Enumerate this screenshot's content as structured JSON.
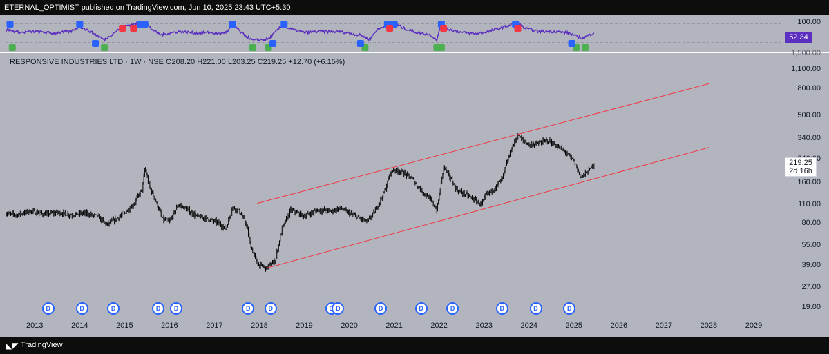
{
  "header": {
    "text": "ETERNAL_OPTIMIST published on TradingView.com, Jun 10, 2025 23:43 UTC+5:30"
  },
  "legend": {
    "text": "RESPONSIVE INDUSTRIES LTD · 1W · NSE  O208.20  H221.00  L203.25  C219.25  +12.70 (+6.15%)"
  },
  "price_tag": {
    "price": "219.25",
    "countdown": "2d 16h"
  },
  "rsi_tag": {
    "value": "52.34"
  },
  "oscillator_labels": [
    "100.00",
    "1,500.00"
  ],
  "footer": {
    "brand": "TradingView",
    "logo_icon": "tradingview-logo-icon"
  },
  "colors": {
    "background": "#b2b5be",
    "candles": "#000000",
    "channel": "#f23645",
    "rsi": "#5b2fbf",
    "bull_marker": "#4caf50",
    "bear_marker": "#2962ff",
    "sell_marker": "#f23645"
  },
  "chart_data": {
    "type": "bar",
    "title": "",
    "symbol": "RESPONSIVE INDUSTRIES LTD",
    "interval": "1W",
    "exchange": "NSE",
    "ohlc": {
      "open": 208.2,
      "high": 221.0,
      "low": 203.25,
      "close": 219.25,
      "change": 12.7,
      "change_pct": 6.15
    },
    "y_scale": "log",
    "ylim": [
      16,
      1400
    ],
    "yticks": [
      1100,
      800,
      500,
      340,
      240,
      160,
      110,
      80,
      55,
      39,
      27,
      19
    ],
    "ytick_labels": [
      "1,100.00",
      "800.00",
      "500.00",
      "340.00",
      "240.00",
      "160.00",
      "110.00",
      "80.00",
      "55.00",
      "39.00",
      "27.00",
      "19.00"
    ],
    "xlim": [
      2012.35,
      2029.6
    ],
    "xticks": [
      2013,
      2014,
      2015,
      2016,
      2017,
      2018,
      2019,
      2020,
      2021,
      2022,
      2023,
      2024,
      2025,
      2026,
      2027,
      2028,
      2029
    ],
    "xtick_labels": [
      "2013",
      "2014",
      "2015",
      "2016",
      "2017",
      "2018",
      "2019",
      "2020",
      "2021",
      "2022",
      "2023",
      "2024",
      "2025",
      "2026",
      "2027",
      "2028",
      "2029"
    ],
    "price_path": [
      [
        2012.35,
        95
      ],
      [
        2012.6,
        92
      ],
      [
        2012.9,
        98
      ],
      [
        2013.2,
        93
      ],
      [
        2013.5,
        96
      ],
      [
        2013.8,
        92
      ],
      [
        2014.1,
        95
      ],
      [
        2014.4,
        90
      ],
      [
        2014.6,
        78
      ],
      [
        2014.8,
        85
      ],
      [
        2015.0,
        95
      ],
      [
        2015.2,
        110
      ],
      [
        2015.4,
        145
      ],
      [
        2015.45,
        205
      ],
      [
        2015.55,
        150
      ],
      [
        2015.7,
        115
      ],
      [
        2015.85,
        85
      ],
      [
        2016.0,
        82
      ],
      [
        2016.2,
        110
      ],
      [
        2016.4,
        100
      ],
      [
        2016.6,
        90
      ],
      [
        2016.9,
        85
      ],
      [
        2017.1,
        80
      ],
      [
        2017.25,
        72
      ],
      [
        2017.4,
        105
      ],
      [
        2017.55,
        98
      ],
      [
        2017.7,
        80
      ],
      [
        2017.8,
        55
      ],
      [
        2017.95,
        40
      ],
      [
        2018.15,
        37
      ],
      [
        2018.35,
        42
      ],
      [
        2018.5,
        72
      ],
      [
        2018.7,
        100
      ],
      [
        2019.0,
        90
      ],
      [
        2019.3,
        100
      ],
      [
        2019.6,
        98
      ],
      [
        2019.8,
        103
      ],
      [
        2020.0,
        95
      ],
      [
        2020.2,
        88
      ],
      [
        2020.4,
        82
      ],
      [
        2020.55,
        95
      ],
      [
        2020.8,
        140
      ],
      [
        2020.9,
        185
      ],
      [
        2021.0,
        200
      ],
      [
        2021.2,
        190
      ],
      [
        2021.4,
        170
      ],
      [
        2021.6,
        140
      ],
      [
        2021.8,
        120
      ],
      [
        2021.95,
        100
      ],
      [
        2022.1,
        210
      ],
      [
        2022.2,
        185
      ],
      [
        2022.4,
        140
      ],
      [
        2022.6,
        130
      ],
      [
        2022.8,
        118
      ],
      [
        2022.95,
        110
      ],
      [
        2023.05,
        130
      ],
      [
        2023.2,
        140
      ],
      [
        2023.4,
        170
      ],
      [
        2023.6,
        280
      ],
      [
        2023.75,
        360
      ],
      [
        2023.85,
        330
      ],
      [
        2024.0,
        305
      ],
      [
        2024.2,
        310
      ],
      [
        2024.4,
        330
      ],
      [
        2024.6,
        300
      ],
      [
        2024.8,
        270
      ],
      [
        2025.0,
        230
      ],
      [
        2025.15,
        175
      ],
      [
        2025.25,
        185
      ],
      [
        2025.35,
        200
      ],
      [
        2025.45,
        219.25
      ]
    ],
    "channel_upper": [
      [
        2017.95,
        112
      ],
      [
        2028.0,
        860
      ]
    ],
    "channel_lower": [
      [
        2018.15,
        37
      ],
      [
        2028.0,
        290
      ]
    ],
    "rsi": {
      "value": 52.34,
      "path": [
        [
          2012.35,
          60
        ],
        [
          2012.7,
          52
        ],
        [
          2013.0,
          55
        ],
        [
          2013.4,
          50
        ],
        [
          2013.8,
          55
        ],
        [
          2014.0,
          70
        ],
        [
          2014.3,
          50
        ],
        [
          2014.55,
          30
        ],
        [
          2014.8,
          55
        ],
        [
          2015.0,
          72
        ],
        [
          2015.25,
          78
        ],
        [
          2015.45,
          85
        ],
        [
          2015.6,
          62
        ],
        [
          2015.8,
          45
        ],
        [
          2016.2,
          55
        ],
        [
          2016.6,
          50
        ],
        [
          2016.9,
          52
        ],
        [
          2017.1,
          48
        ],
        [
          2017.3,
          55
        ],
        [
          2017.4,
          80
        ],
        [
          2017.6,
          50
        ],
        [
          2017.85,
          28
        ],
        [
          2018.2,
          32
        ],
        [
          2018.5,
          72
        ],
        [
          2018.75,
          60
        ],
        [
          2019.0,
          52
        ],
        [
          2019.4,
          55
        ],
        [
          2019.8,
          54
        ],
        [
          2020.0,
          50
        ],
        [
          2020.3,
          42
        ],
        [
          2020.45,
          30
        ],
        [
          2020.6,
          58
        ],
        [
          2020.85,
          76
        ],
        [
          2021.0,
          82
        ],
        [
          2021.2,
          65
        ],
        [
          2021.5,
          52
        ],
        [
          2021.8,
          45
        ],
        [
          2021.95,
          30
        ],
        [
          2022.05,
          78
        ],
        [
          2022.2,
          62
        ],
        [
          2022.5,
          52
        ],
        [
          2022.8,
          48
        ],
        [
          2023.0,
          52
        ],
        [
          2023.3,
          62
        ],
        [
          2023.6,
          75
        ],
        [
          2023.75,
          80
        ],
        [
          2023.9,
          65
        ],
        [
          2024.2,
          55
        ],
        [
          2024.6,
          55
        ],
        [
          2024.9,
          50
        ],
        [
          2025.05,
          40
        ],
        [
          2025.2,
          35
        ],
        [
          2025.35,
          45
        ],
        [
          2025.45,
          52.34
        ]
      ]
    },
    "markers": {
      "bull": [
        2012.5,
        2014.55,
        2017.85,
        2018.2,
        2020.35,
        2021.95,
        2022.05,
        2025.05,
        2025.25
      ],
      "bear": [
        2012.45,
        2014.0,
        2014.35,
        2015.35,
        2015.45,
        2017.4,
        2018.3,
        2018.55,
        2020.25,
        2020.85,
        2021.0,
        2022.05,
        2023.7,
        2024.95
      ],
      "sell": [
        2014.95,
        2015.2,
        2020.9,
        2022.1,
        2023.75
      ]
    },
    "dividends": [
      2013.3,
      2014.05,
      2014.75,
      2015.75,
      2016.15,
      2017.75,
      2018.25,
      2019.6,
      2019.75,
      2020.7,
      2021.6,
      2022.3,
      2023.4,
      2024.15,
      2024.9
    ],
    "dividend_label": "D"
  }
}
